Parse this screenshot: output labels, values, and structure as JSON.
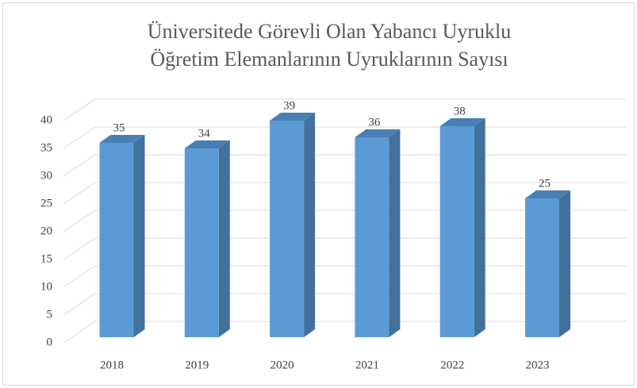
{
  "chart_data": {
    "type": "bar3d",
    "title": [
      "Üniversitede Görevli Olan Yabancı Uyruklu",
      "Öğretim Elemanlarının Uyruklarının Sayısı"
    ],
    "categories": [
      "2018",
      "2019",
      "2020",
      "2021",
      "2022",
      "2023"
    ],
    "values": [
      35,
      34,
      39,
      36,
      38,
      25
    ],
    "color": "#5b9bd5",
    "ylim": [
      0,
      40
    ],
    "yticks": [
      0,
      5,
      10,
      15,
      20,
      25,
      30,
      35,
      40
    ],
    "grid": true
  }
}
